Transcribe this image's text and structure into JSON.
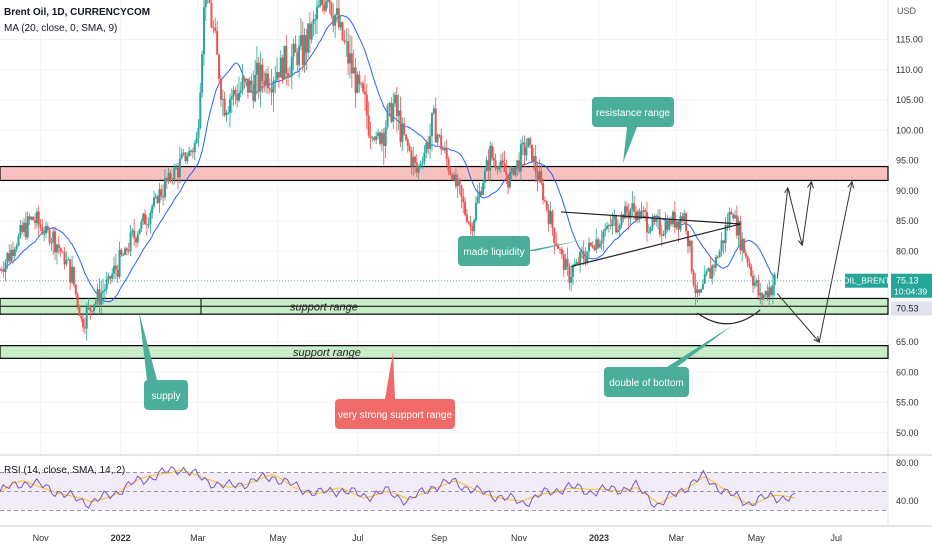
{
  "header": {
    "symbol_line": "Brent Oil, 1D, CURRENCYCOM",
    "ma_line": "MA (20, close, 0, SMA, 9)",
    "rsi_line": "RSI (14, close, SMA, 14, 2)"
  },
  "colors": {
    "up": "#26a69a",
    "down": "#ef5350",
    "ma": "#2962ff",
    "rsi": "#7e57c2",
    "rsi_ma": "#f7c325",
    "resistance_fill": "#f8c1c1",
    "support_fill": "#c9ecc9",
    "callout_green": "#4aae9b",
    "callout_red": "#f06a6a"
  },
  "chart_data": [
    {
      "type": "candlestick",
      "title": "Brent Oil, 1D, CURRENCYCOM",
      "indicator": "MA (20, close, 0, SMA, 9)",
      "x_ticks": [
        "Nov",
        "2022",
        "Mar",
        "May",
        "Jul",
        "Sep",
        "Nov",
        "2023",
        "Mar",
        "May",
        "Jul"
      ],
      "y_unit": "USD",
      "y_ticks": [
        50,
        55,
        60,
        65,
        70,
        75,
        80,
        85,
        90,
        95,
        100,
        105,
        110,
        115
      ],
      "ylim": [
        45,
        121
      ],
      "price_path": [
        [
          "2021-10-01",
          77
        ],
        [
          "2021-10-25",
          85.5
        ],
        [
          "2021-11-12",
          82
        ],
        [
          "2021-11-25",
          76
        ],
        [
          "2021-12-02",
          68.5
        ],
        [
          "2021-12-20",
          74
        ],
        [
          "2022-01-10",
          82
        ],
        [
          "2022-02-01",
          90
        ],
        [
          "2022-02-28",
          98
        ],
        [
          "2022-03-07",
          125
        ],
        [
          "2022-03-20",
          105
        ],
        [
          "2022-04-15",
          108
        ],
        [
          "2022-05-20",
          113
        ],
        [
          "2022-06-08",
          123
        ],
        [
          "2022-06-25",
          111
        ],
        [
          "2022-07-15",
          98
        ],
        [
          "2022-07-28",
          104
        ],
        [
          "2022-08-15",
          93
        ],
        [
          "2022-08-28",
          101
        ],
        [
          "2022-09-25",
          84
        ],
        [
          "2022-10-10",
          96
        ],
        [
          "2022-10-25",
          92
        ],
        [
          "2022-11-08",
          98
        ],
        [
          "2022-11-25",
          85
        ],
        [
          "2022-12-08",
          76
        ],
        [
          "2023-01-03",
          83
        ],
        [
          "2023-01-25",
          87
        ],
        [
          "2023-02-15",
          84
        ],
        [
          "2023-03-07",
          86
        ],
        [
          "2023-03-17",
          72
        ],
        [
          "2023-04-03",
          80
        ],
        [
          "2023-04-12",
          87
        ],
        [
          "2023-05-04",
          72
        ],
        [
          "2023-05-15",
          75.1
        ]
      ],
      "last_price": "75.13",
      "last_price_label": "OIL_BRENT",
      "countdown": "10:04:39",
      "level_label": "70.53",
      "zones": [
        {
          "label": "resistance range",
          "from": 91.7,
          "to": 94
        },
        {
          "label": "support range",
          "from": 69.6,
          "to": 72.2
        },
        {
          "label": "support range",
          "from": 62.3,
          "to": 64.4
        }
      ],
      "triangle": {
        "top": [
          [
            "2022-12-03",
            86.5
          ],
          [
            "2023-04-19",
            84.5
          ]
        ],
        "bottom": [
          [
            "2022-12-11",
            77.5
          ],
          [
            "2023-04-19",
            84.5
          ]
        ]
      },
      "projection": [
        [
          "2023-05-17",
          75.5
        ],
        [
          "2023-05-25",
          90.5
        ],
        [
          "2023-06-05",
          81
        ],
        [
          "2023-06-12",
          91.5
        ]
      ],
      "projection_alt": [
        [
          "2023-05-17",
          73
        ],
        [
          "2023-06-18",
          65
        ],
        [
          "2023-07-13",
          91.5
        ]
      ],
      "annotations": [
        {
          "text": "resistance range",
          "style": "green"
        },
        {
          "text": "made liquidity",
          "style": "green"
        },
        {
          "text": "supply",
          "style": "green"
        },
        {
          "text": "very strong support range",
          "style": "red"
        },
        {
          "text": "double of bottom",
          "style": "green"
        }
      ]
    },
    {
      "type": "line",
      "title": "RSI (14, close, SMA, 14, 2)",
      "y_ticks": [
        40,
        80
      ],
      "ylim": [
        25,
        85
      ],
      "band": [
        30,
        70
      ],
      "values_approx": [
        50,
        60,
        55,
        45,
        38,
        48,
        60,
        68,
        75,
        62,
        55,
        60,
        66,
        55,
        48,
        52,
        45,
        50,
        40,
        55,
        60,
        50,
        45,
        38,
        48,
        55,
        50,
        52,
        55,
        35,
        52,
        66,
        48,
        38,
        45,
        42
      ]
    }
  ]
}
